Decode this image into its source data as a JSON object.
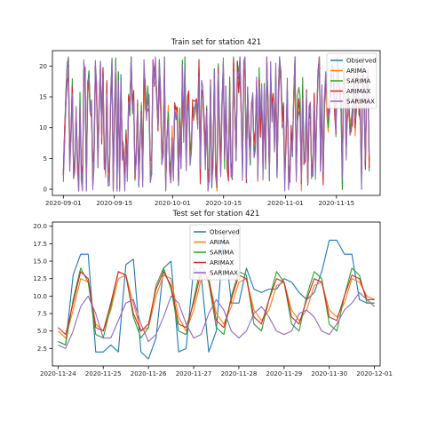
{
  "chart_data": [
    {
      "type": "line",
      "title": "Train set for station 421",
      "xlabel": "",
      "ylabel": "",
      "x_ticks": [
        "2020-09-01",
        "2020-09-15",
        "2020-10-01",
        "2020-10-15",
        "2020-11-01",
        "2020-11-15"
      ],
      "y_ticks": [
        0,
        5,
        10,
        15,
        20
      ],
      "xlim": [
        "2020-08-29",
        "2020-11-27"
      ],
      "ylim": [
        -1,
        22.5
      ],
      "x_start": "2020-09-01",
      "x_end": "2020-11-24",
      "legend_position": "top-right",
      "grid": false,
      "series": [
        {
          "name": "Observed",
          "color": "#1f77b4"
        },
        {
          "name": "ARIMA",
          "color": "#ff7f0e"
        },
        {
          "name": "SARIMA",
          "color": "#2ca02c"
        },
        {
          "name": "ARIMAX",
          "color": "#d62728"
        },
        {
          "name": "SARIMAX",
          "color": "#9467bd"
        }
      ]
    },
    {
      "type": "line",
      "title": "Test set for station 421",
      "xlabel": "",
      "ylabel": "",
      "x_ticks": [
        "2020-11-24",
        "2020-11-25",
        "2020-11-26",
        "2020-11-27",
        "2020-11-28",
        "2020-11-29",
        "2020-11-30",
        "2020-12-01"
      ],
      "y_ticks": [
        2.5,
        5.0,
        7.5,
        10.0,
        12.5,
        15.0,
        17.5,
        20.0
      ],
      "y_tick_labels": [
        "2.5",
        "5.0",
        "7.5",
        "10.0",
        "12.5",
        "15.0",
        "17.5",
        "20.0"
      ],
      "xlim": [
        "2020-11-23 21:00",
        "2020-12-01 03:00"
      ],
      "ylim": [
        0,
        20.6
      ],
      "legend_position": "top-left",
      "grid": false,
      "x": [
        "2020-11-24 00:00",
        "2020-11-24 04:00",
        "2020-11-24 08:00",
        "2020-11-24 12:00",
        "2020-11-24 16:00",
        "2020-11-24 20:00",
        "2020-11-25 00:00",
        "2020-11-25 04:00",
        "2020-11-25 08:00",
        "2020-11-25 12:00",
        "2020-11-25 16:00",
        "2020-11-25 20:00",
        "2020-11-26 00:00",
        "2020-11-26 04:00",
        "2020-11-26 08:00",
        "2020-11-26 12:00",
        "2020-11-26 16:00",
        "2020-11-26 20:00",
        "2020-11-27 00:00",
        "2020-11-27 04:00",
        "2020-11-27 08:00",
        "2020-11-27 12:00",
        "2020-11-27 16:00",
        "2020-11-27 20:00",
        "2020-11-28 00:00",
        "2020-11-28 04:00",
        "2020-11-28 08:00",
        "2020-11-28 12:00",
        "2020-11-28 16:00",
        "2020-11-28 20:00",
        "2020-11-29 00:00",
        "2020-11-29 04:00",
        "2020-11-29 08:00",
        "2020-11-29 12:00",
        "2020-11-29 16:00",
        "2020-11-29 20:00",
        "2020-11-30 00:00",
        "2020-11-30 04:00",
        "2020-11-30 08:00",
        "2020-11-30 12:00",
        "2020-11-30 16:00",
        "2020-11-30 20:00",
        "2020-12-01 00:00"
      ],
      "series": [
        {
          "name": "Observed",
          "color": "#1f77b4",
          "values": [
            3.5,
            3.0,
            13.0,
            16.0,
            16.0,
            2.0,
            2.0,
            3.0,
            2.0,
            14.5,
            15.3,
            2.0,
            1.0,
            4.0,
            14.0,
            15.0,
            2.0,
            2.5,
            14.0,
            13.0,
            2.0,
            5.0,
            19.0,
            9.0,
            9.0,
            14.0,
            11.0,
            10.5,
            11.0,
            11.0,
            12.5,
            12.0,
            10.5,
            9.5,
            10.5,
            13.5,
            18.0,
            18.0,
            16.0,
            16.0,
            9.5,
            9.0,
            9.0
          ]
        },
        {
          "name": "ARIMA",
          "color": "#ff7f0e",
          "values": [
            5.0,
            4.0,
            8.0,
            12.5,
            12.0,
            6.0,
            5.0,
            8.0,
            12.5,
            13.0,
            9.0,
            5.0,
            5.5,
            10.0,
            13.0,
            12.5,
            7.0,
            5.0,
            8.0,
            12.5,
            12.5,
            7.5,
            6.0,
            8.5,
            12.0,
            12.5,
            8.0,
            6.5,
            8.0,
            11.5,
            12.0,
            8.0,
            6.5,
            8.0,
            11.5,
            12.0,
            8.0,
            7.0,
            9.0,
            12.5,
            12.0,
            10.0,
            9.5
          ]
        },
        {
          "name": "SARIMA",
          "color": "#2ca02c",
          "values": [
            3.5,
            3.0,
            9.5,
            14.0,
            12.0,
            4.5,
            4.0,
            8.5,
            13.5,
            13.0,
            7.0,
            4.0,
            5.5,
            11.5,
            14.0,
            11.0,
            5.0,
            4.5,
            9.5,
            14.5,
            12.0,
            5.5,
            4.5,
            10.0,
            13.5,
            13.0,
            6.0,
            5.0,
            9.5,
            13.5,
            12.0,
            6.0,
            5.0,
            10.0,
            13.5,
            12.5,
            6.0,
            5.0,
            10.0,
            14.0,
            13.0,
            9.0,
            9.0
          ]
        },
        {
          "name": "ARIMAX",
          "color": "#d62728",
          "values": [
            5.5,
            4.5,
            9.0,
            13.5,
            12.5,
            5.5,
            5.0,
            9.0,
            13.5,
            13.0,
            7.5,
            5.0,
            6.0,
            11.0,
            13.5,
            11.5,
            6.0,
            5.5,
            9.0,
            13.5,
            12.5,
            6.5,
            5.5,
            9.5,
            13.0,
            12.5,
            7.0,
            6.0,
            9.5,
            12.5,
            12.0,
            7.0,
            6.0,
            9.5,
            12.5,
            12.0,
            7.0,
            6.5,
            10.0,
            13.0,
            12.5,
            9.5,
            9.5
          ]
        },
        {
          "name": "SARIMAX",
          "color": "#9467bd",
          "values": [
            3.0,
            2.5,
            5.0,
            8.5,
            10.0,
            7.5,
            4.0,
            4.0,
            6.5,
            9.0,
            9.5,
            6.0,
            3.5,
            4.5,
            7.0,
            10.0,
            9.0,
            6.0,
            4.0,
            4.5,
            7.5,
            9.5,
            8.0,
            5.0,
            4.0,
            5.0,
            7.5,
            8.5,
            7.0,
            5.0,
            4.5,
            5.0,
            7.5,
            8.0,
            7.0,
            5.0,
            4.5,
            6.0,
            8.0,
            9.0,
            10.5,
            9.5,
            8.5
          ]
        }
      ]
    }
  ]
}
